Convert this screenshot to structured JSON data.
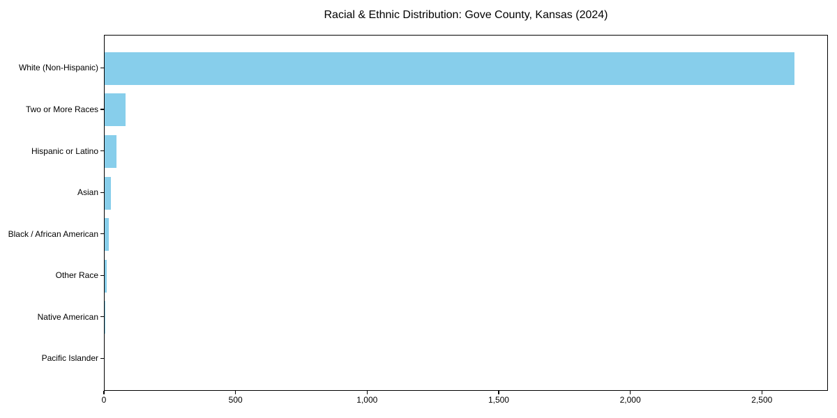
{
  "title": "Racial & Ethnic Distribution: Gove County, Kansas (2024)",
  "chart_data": {
    "type": "bar",
    "orientation": "horizontal",
    "title": "Racial & Ethnic Distribution: Gove County, Kansas (2024)",
    "categories": [
      "White (Non-Hispanic)",
      "Two or More Races",
      "Hispanic or Latino",
      "Asian",
      "Black / African American",
      "Other Race",
      "Native American",
      "Pacific Islander"
    ],
    "values": [
      2620,
      80,
      45,
      25,
      15,
      8,
      2,
      0
    ],
    "xlabel": "",
    "ylabel": "",
    "xlim": [
      0,
      2751
    ],
    "x_ticks": [
      0,
      500,
      1000,
      1500,
      2000,
      2500
    ],
    "x_tick_labels": [
      "0",
      "500",
      "1,000",
      "1,500",
      "2,000",
      "2,500"
    ],
    "bar_color": "#87CEEB",
    "axis_color": "#000000",
    "text_color": "#000000",
    "background_color": "#ffffff",
    "grid": false,
    "legend": null
  }
}
